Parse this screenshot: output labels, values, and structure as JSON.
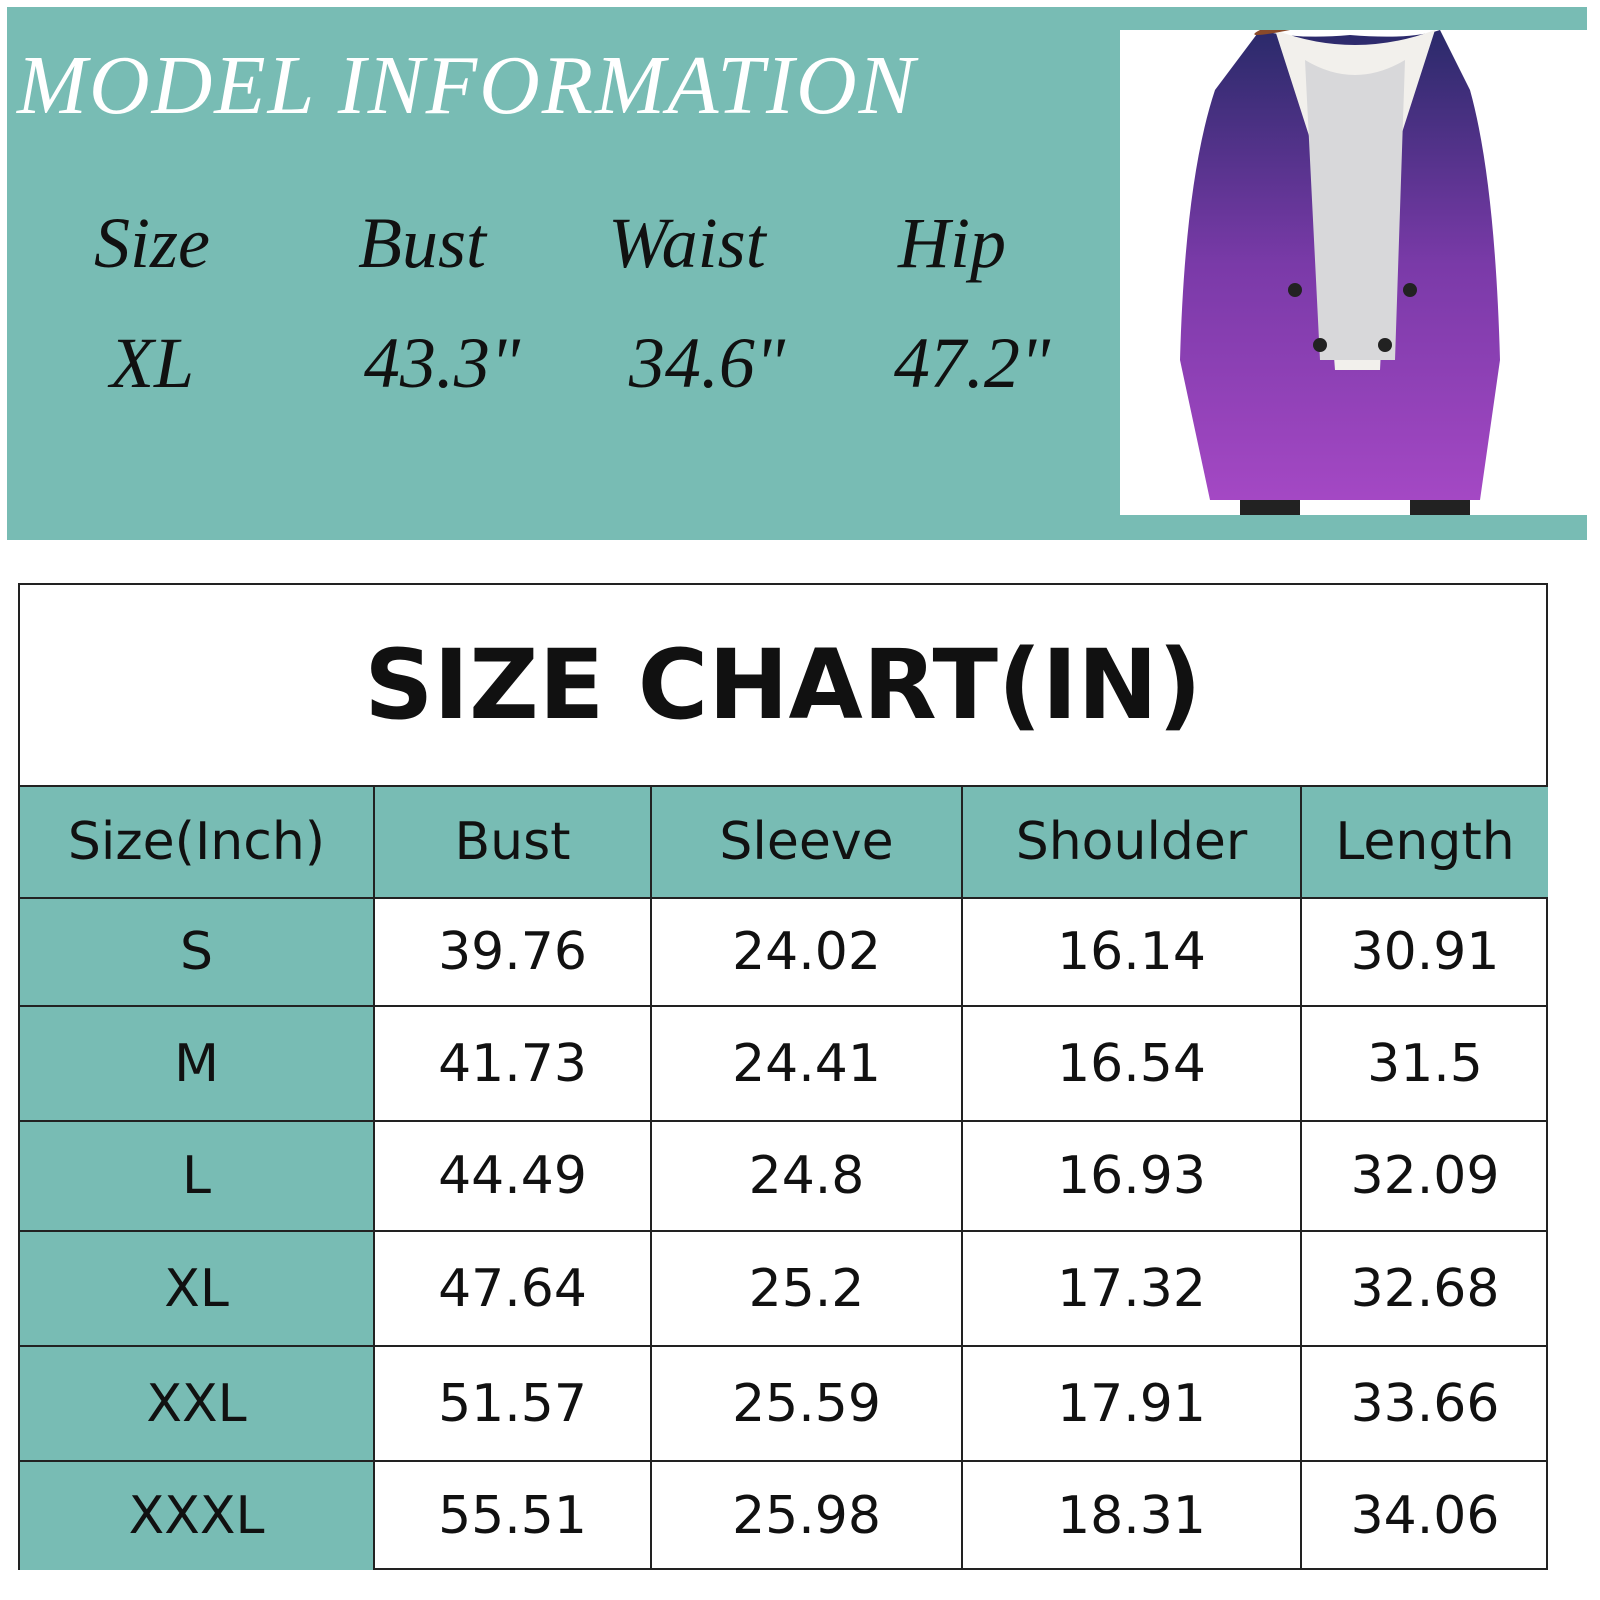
{
  "model": {
    "title": "MODEL INFORMATION",
    "headers": [
      "Size",
      "Bust",
      "Waist",
      "Hip"
    ],
    "values": [
      "XL",
      "43.3\"",
      "34.6\"",
      "47.2\""
    ]
  },
  "size_chart": {
    "title": "SIZE CHART(IN)",
    "header": [
      "Size(Inch)",
      "Bust",
      "Sleeve",
      "Shoulder",
      "Length"
    ],
    "rows": [
      [
        "S",
        "39.76",
        "24.02",
        "16.14",
        "30.91"
      ],
      [
        "M",
        "41.73",
        "24.41",
        "16.54",
        "31.5"
      ],
      [
        "L",
        "44.49",
        "24.8",
        "16.93",
        "32.09"
      ],
      [
        "XL",
        "47.64",
        "25.2",
        "17.32",
        "32.68"
      ],
      [
        "XXL",
        "51.57",
        "25.59",
        "17.91",
        "33.66"
      ],
      [
        "XXXL",
        "55.51",
        "25.98",
        "18.31",
        "34.06"
      ]
    ]
  }
}
